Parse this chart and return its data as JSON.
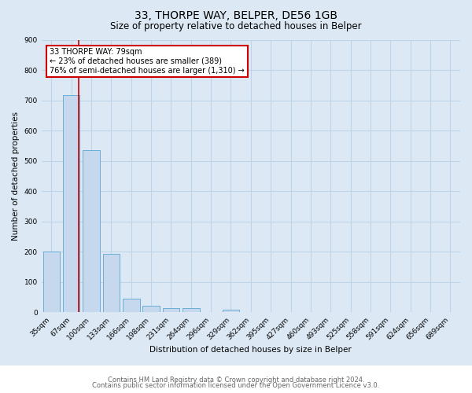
{
  "title_line1": "33, THORPE WAY, BELPER, DE56 1GB",
  "title_line2": "Size of property relative to detached houses in Belper",
  "xlabel": "Distribution of detached houses by size in Belper",
  "ylabel": "Number of detached properties",
  "footer_line1": "Contains HM Land Registry data © Crown copyright and database right 2024.",
  "footer_line2": "Contains public sector information licensed under the Open Government Licence v3.0.",
  "categories": [
    "35sqm",
    "67sqm",
    "100sqm",
    "133sqm",
    "166sqm",
    "198sqm",
    "231sqm",
    "264sqm",
    "296sqm",
    "329sqm",
    "362sqm",
    "395sqm",
    "427sqm",
    "460sqm",
    "493sqm",
    "525sqm",
    "558sqm",
    "591sqm",
    "624sqm",
    "656sqm",
    "689sqm"
  ],
  "values": [
    200,
    717,
    537,
    193,
    46,
    21,
    13,
    13,
    0,
    10,
    0,
    0,
    0,
    0,
    0,
    0,
    0,
    0,
    0,
    0,
    0
  ],
  "bar_color": "#c5d8ed",
  "bar_edge_color": "#6aaed6",
  "background_color": "#dce9f5",
  "plot_bg_color": "#dce9f5",
  "grid_color": "#c0d4e8",
  "ann_line1": "33 THORPE WAY: 79sqm",
  "ann_line2": "← 23% of detached houses are smaller (389)",
  "ann_line3": "76% of semi-detached houses are larger (1,310) →",
  "red_line_index": 1.36,
  "ylim": [
    0,
    900
  ],
  "yticks": [
    0,
    100,
    200,
    300,
    400,
    500,
    600,
    700,
    800,
    900
  ],
  "title1_fontsize": 10,
  "title2_fontsize": 8.5,
  "axis_fontsize": 7.5,
  "tick_fontsize": 6.5,
  "footer_color": "#666666",
  "footer_fontsize": 6
}
